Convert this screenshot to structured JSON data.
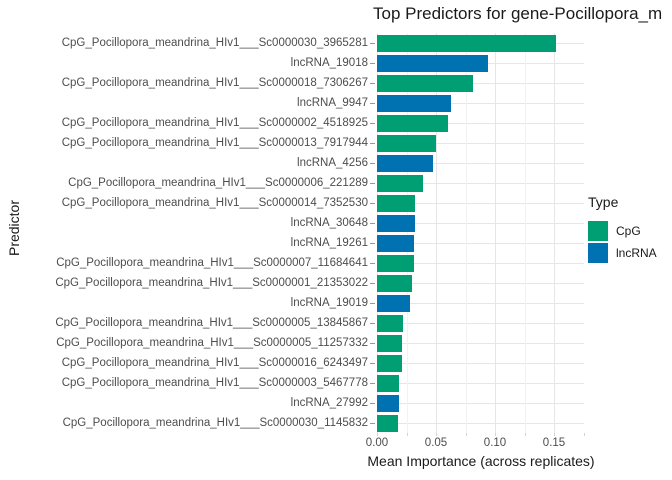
{
  "title": "Top Predictors for gene-Pocillopora_m",
  "axes": {
    "x_label": "Mean Importance (across replicates)",
    "y_label": "Predictor",
    "x_tick_labels": [
      "0.00",
      "0.05",
      "0.10",
      "0.15"
    ]
  },
  "legend": {
    "title": "Type",
    "items": [
      {
        "label": "CpG",
        "color": "#009E73"
      },
      {
        "label": "lncRNA",
        "color": "#0072B2"
      }
    ]
  },
  "colors": {
    "CpG": "#009E73",
    "lncRNA": "#0072B2",
    "grid_major": "#e6e6e6",
    "grid_minor": "#f2f2f2",
    "axis_text": "#4d4d4d"
  },
  "chart_data": {
    "type": "bar",
    "orientation": "horizontal",
    "title": "Top Predictors for gene-Pocillopora_m",
    "xlabel": "Mean Importance (across replicates)",
    "ylabel": "Predictor",
    "legend_title": "Type",
    "legend_position": "right",
    "grid": true,
    "xlim": [
      0,
      0.175
    ],
    "x_major_ticks": [
      0,
      0.05,
      0.1,
      0.15
    ],
    "x_minor_ticks": [
      0.025,
      0.075,
      0.125,
      0.175
    ],
    "categories": [
      "CpG_Pocillopora_meandrina_HIv1___Sc0000030_3965281",
      "lncRNA_19018",
      "CpG_Pocillopora_meandrina_HIv1___Sc0000018_7306267",
      "lncRNA_9947",
      "CpG_Pocillopora_meandrina_HIv1___Sc0000002_4518925",
      "CpG_Pocillopora_meandrina_HIv1___Sc0000013_7917944",
      "lncRNA_4256",
      "CpG_Pocillopora_meandrina_HIv1___Sc0000006_221289",
      "CpG_Pocillopora_meandrina_HIv1___Sc0000014_7352530",
      "lncRNA_30648",
      "lncRNA_19261",
      "CpG_Pocillopora_meandrina_HIv1___Sc0000007_11684641",
      "CpG_Pocillopora_meandrina_HIv1___Sc0000001_21353022",
      "lncRNA_19019",
      "CpG_Pocillopora_meandrina_HIv1___Sc0000005_13845867",
      "CpG_Pocillopora_meandrina_HIv1___Sc0000005_11257332",
      "CpG_Pocillopora_meandrina_HIv1___Sc0000016_6243497",
      "CpG_Pocillopora_meandrina_HIv1___Sc0000003_5467778",
      "lncRNA_27992",
      "CpG_Pocillopora_meandrina_HIv1___Sc0000030_1145832"
    ],
    "types": [
      "CpG",
      "lncRNA",
      "CpG",
      "lncRNA",
      "CpG",
      "CpG",
      "lncRNA",
      "CpG",
      "CpG",
      "lncRNA",
      "lncRNA",
      "CpG",
      "CpG",
      "lncRNA",
      "CpG",
      "CpG",
      "CpG",
      "CpG",
      "lncRNA",
      "CpG"
    ],
    "values": [
      0.152,
      0.094,
      0.081,
      0.063,
      0.06,
      0.05,
      0.047,
      0.039,
      0.032,
      0.032,
      0.031,
      0.031,
      0.03,
      0.028,
      0.022,
      0.021,
      0.021,
      0.019,
      0.019,
      0.018
    ]
  }
}
